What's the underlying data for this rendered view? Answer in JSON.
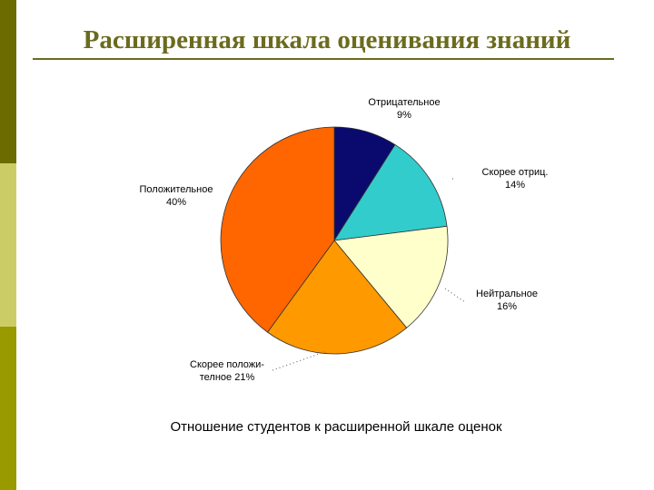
{
  "title": "Расширенная шкала оценивания знаний",
  "chart_data": {
    "type": "pie",
    "caption": "Отношение студентов к расширенной шкале оценок",
    "categories": [
      "Отрицательное",
      "Скорее отриц.",
      "Нейтральное",
      "Скорее положи- телное",
      "Положительное"
    ],
    "values": [
      9,
      14,
      16,
      21,
      40
    ],
    "value_labels": [
      "9%",
      "14%",
      "16%",
      "21%",
      "40%"
    ],
    "colors": [
      "#0a0a6e",
      "#33cccc",
      "#ffffcc",
      "#ff9900",
      "#ff6600"
    ]
  }
}
